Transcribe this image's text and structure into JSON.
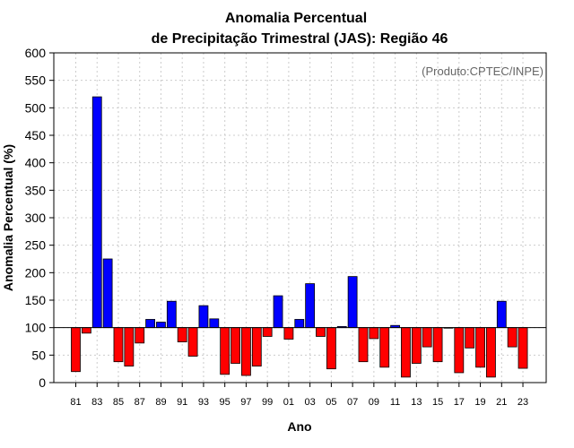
{
  "chart_data": {
    "type": "bar",
    "title_line1": "Anomalia Percentual",
    "title_line2": "de Precipitação Trimestral (JAS): Região 46",
    "xlabel": "Ano",
    "ylabel": "Anomalia Percentual (%)",
    "credit": "(Produto:CPTEC/INPE)",
    "ylim": [
      0,
      600
    ],
    "yticks": [
      0,
      50,
      100,
      150,
      200,
      250,
      300,
      350,
      400,
      450,
      500,
      550,
      600
    ],
    "baseline": 100,
    "grid": true,
    "colors": {
      "above": "#0000ff",
      "below": "#ff0000",
      "grid": "#cccccc"
    },
    "categories": [
      "81",
      "82",
      "83",
      "84",
      "85",
      "86",
      "87",
      "88",
      "89",
      "90",
      "91",
      "92",
      "93",
      "94",
      "95",
      "96",
      "97",
      "98",
      "99",
      "00",
      "01",
      "02",
      "03",
      "04",
      "05",
      "06",
      "07",
      "08",
      "09",
      "10",
      "11",
      "12",
      "13",
      "14",
      "15",
      "16",
      "17",
      "18",
      "19",
      "20",
      "21",
      "22",
      "23"
    ],
    "x_tick_labels": [
      "81",
      "83",
      "85",
      "87",
      "89",
      "91",
      "93",
      "95",
      "97",
      "99",
      "01",
      "03",
      "05",
      "07",
      "09",
      "11",
      "13",
      "15",
      "17",
      "19",
      "21",
      "23"
    ],
    "values": [
      20,
      90,
      520,
      225,
      38,
      30,
      72,
      115,
      110,
      148,
      74,
      48,
      140,
      116,
      15,
      35,
      13,
      30,
      84,
      158,
      79,
      115,
      180,
      84,
      25,
      102,
      193,
      38,
      80,
      28,
      104,
      10,
      35,
      65,
      38,
      99,
      18,
      63,
      28,
      10,
      148,
      65,
      26
    ]
  }
}
